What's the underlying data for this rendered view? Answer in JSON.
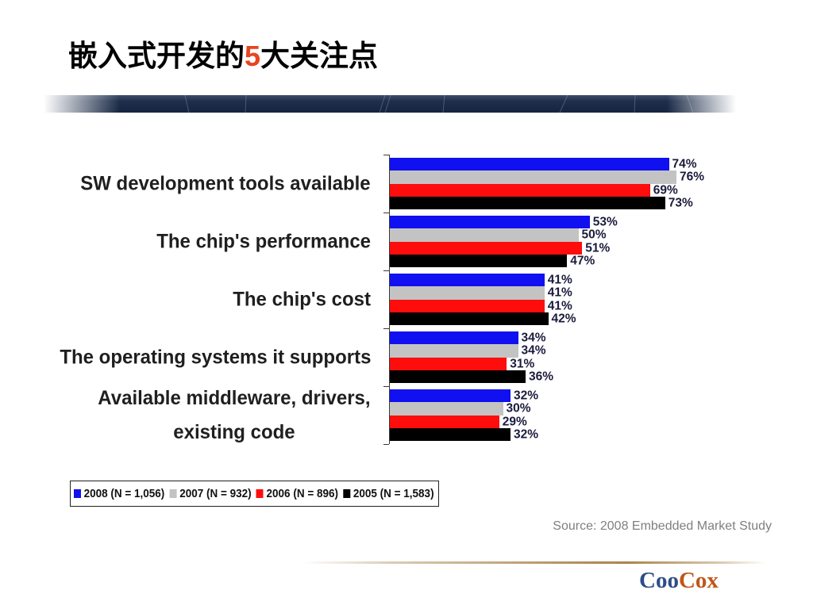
{
  "slide": {
    "title_prefix": "嵌入式开发的",
    "title_highlight": "5",
    "title_suffix": "大关注点",
    "source": "Source: 2008 Embedded Market Study",
    "logo": {
      "text_a": "Coo",
      "text_b": "Cox"
    }
  },
  "colors": {
    "title_highlight": "#e8441d",
    "logo_primary": "#2d4e87",
    "logo_secondary": "#c0561b"
  },
  "chart_data": {
    "type": "bar",
    "orientation": "horizontal",
    "categories": [
      "SW development tools available",
      "The chip's performance",
      "The chip's cost",
      "The operating systems it supports",
      "Available middleware, drivers,\nexisting code"
    ],
    "series": [
      {
        "name": "2008 (N = 1,056)",
        "color": "#1010f0",
        "values": [
          74,
          53,
          41,
          34,
          32
        ]
      },
      {
        "name": "2007 (N = 932)",
        "color": "#c3c3c3",
        "values": [
          76,
          50,
          41,
          34,
          30
        ]
      },
      {
        "name": "2006 (N = 896)",
        "color": "#ff0d0d",
        "values": [
          69,
          51,
          41,
          31,
          29
        ]
      },
      {
        "name": "2005 (N = 1,583)",
        "color": "#000000",
        "values": [
          73,
          47,
          42,
          36,
          32
        ]
      }
    ],
    "value_suffix": "%",
    "data_labels": true,
    "grid": false,
    "legend_position": "bottom-left"
  }
}
